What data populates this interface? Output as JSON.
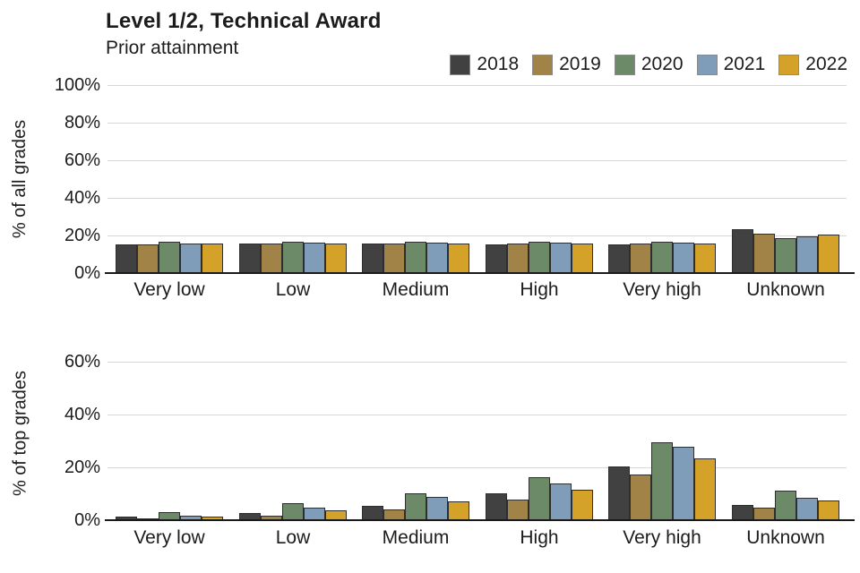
{
  "title": "Level 1/2, Technical Award",
  "subtitle": "Prior attainment",
  "legend": [
    {
      "label": "2018",
      "color": "#414141"
    },
    {
      "label": "2019",
      "color": "#a28347"
    },
    {
      "label": "2020",
      "color": "#6d8a68"
    },
    {
      "label": "2021",
      "color": "#7f9db9"
    },
    {
      "label": "2022",
      "color": "#d4a129"
    }
  ],
  "chart_data": [
    {
      "type": "bar",
      "panel": "top",
      "ylabel": "% of all grades",
      "categories": [
        "Very low",
        "Low",
        "Medium",
        "High",
        "Very high",
        "Unknown"
      ],
      "series": [
        {
          "name": "2018",
          "color": "#414141",
          "values": [
            15.4,
            15.7,
            15.5,
            15.4,
            15.2,
            23.2
          ]
        },
        {
          "name": "2019",
          "color": "#a28347",
          "values": [
            15.4,
            15.7,
            15.8,
            15.8,
            15.7,
            21.0
          ]
        },
        {
          "name": "2020",
          "color": "#6d8a68",
          "values": [
            16.6,
            16.6,
            16.5,
            16.6,
            16.7,
            18.7
          ]
        },
        {
          "name": "2021",
          "color": "#7f9db9",
          "values": [
            15.9,
            16.1,
            16.1,
            16.2,
            16.3,
            19.6
          ]
        },
        {
          "name": "2022",
          "color": "#d4a129",
          "values": [
            15.7,
            15.8,
            15.8,
            15.7,
            15.5,
            20.6
          ]
        }
      ],
      "yticks": [
        {
          "value": 0,
          "label": "0%"
        },
        {
          "value": 20,
          "label": "20%"
        },
        {
          "value": 40,
          "label": "40%"
        },
        {
          "value": 60,
          "label": "60%"
        },
        {
          "value": 80,
          "label": "80%"
        },
        {
          "value": 100,
          "label": "100%"
        }
      ],
      "ylim": [
        0,
        100
      ],
      "grid": true,
      "legend_position": "top-right"
    },
    {
      "type": "bar",
      "panel": "bottom",
      "ylabel": "% of top grades",
      "categories": [
        "Very low",
        "Low",
        "Medium",
        "High",
        "Very high",
        "Unknown"
      ],
      "series": [
        {
          "name": "2018",
          "color": "#414141",
          "values": [
            1.4,
            2.8,
            5.5,
            10.2,
            20.3,
            5.8
          ]
        },
        {
          "name": "2019",
          "color": "#a28347",
          "values": [
            0.7,
            1.8,
            4.0,
            7.8,
            17.3,
            4.7
          ]
        },
        {
          "name": "2020",
          "color": "#6d8a68",
          "values": [
            3.1,
            6.4,
            10.3,
            16.3,
            29.4,
            11.2
          ]
        },
        {
          "name": "2021",
          "color": "#7f9db9",
          "values": [
            1.7,
            4.9,
            8.7,
            13.9,
            27.7,
            8.5
          ]
        },
        {
          "name": "2022",
          "color": "#d4a129",
          "values": [
            1.2,
            3.8,
            7.0,
            11.5,
            23.4,
            7.6
          ]
        }
      ],
      "yticks": [
        {
          "value": 0,
          "label": "0%"
        },
        {
          "value": 20,
          "label": "20%"
        },
        {
          "value": 40,
          "label": "40%"
        },
        {
          "value": 60,
          "label": "60%"
        }
      ],
      "ylim": [
        0,
        60
      ],
      "grid": true,
      "legend_position": "none"
    }
  ]
}
